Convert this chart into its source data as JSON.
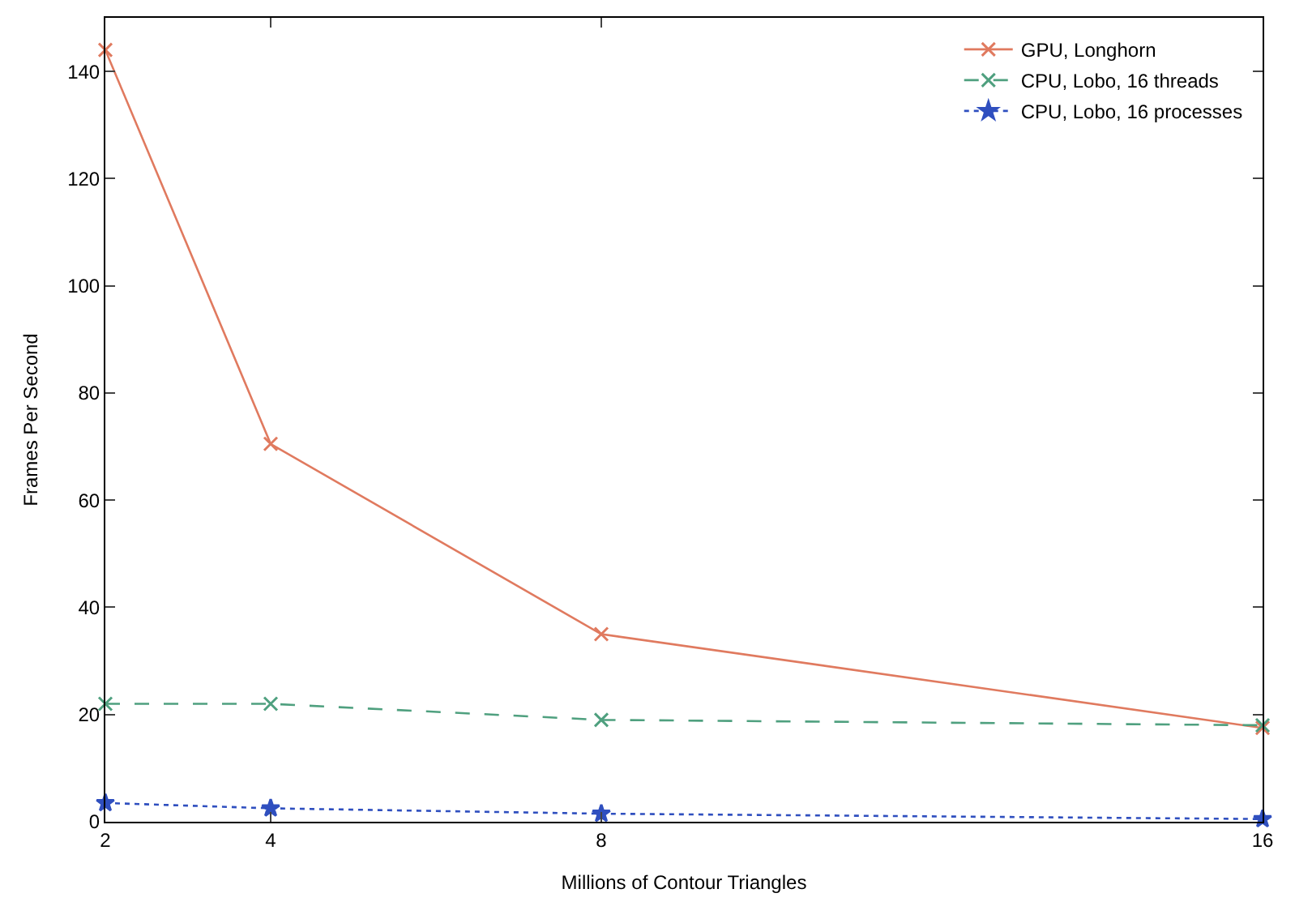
{
  "chart_data": {
    "type": "line",
    "xlabel": "Millions of Contour Triangles",
    "ylabel": "Frames Per Second",
    "x": [
      2,
      4,
      8,
      16
    ],
    "series": [
      {
        "name": "GPU, Longhorn",
        "color": "#e07a5f",
        "values": [
          144,
          70.5,
          35,
          17.5
        ],
        "marker": "cross",
        "line_style": "solid"
      },
      {
        "name": "CPU, Lobo, 16 threads",
        "color": "#4fa07f",
        "values": [
          22,
          22,
          19,
          18
        ],
        "marker": "cross",
        "line_style": "dashed"
      },
      {
        "name": "CPU, Lobo, 16 processes",
        "color": "#2f4fbf",
        "values": [
          3.5,
          2.5,
          1.5,
          0.5
        ],
        "marker": "star",
        "line_style": "dotted"
      }
    ],
    "xlim": [
      2,
      16
    ],
    "xticks": [
      2,
      4,
      8,
      16
    ],
    "ylim": [
      0,
      150
    ],
    "yticks": [
      0,
      20,
      40,
      60,
      80,
      100,
      120,
      140
    ],
    "legend": "top right"
  }
}
